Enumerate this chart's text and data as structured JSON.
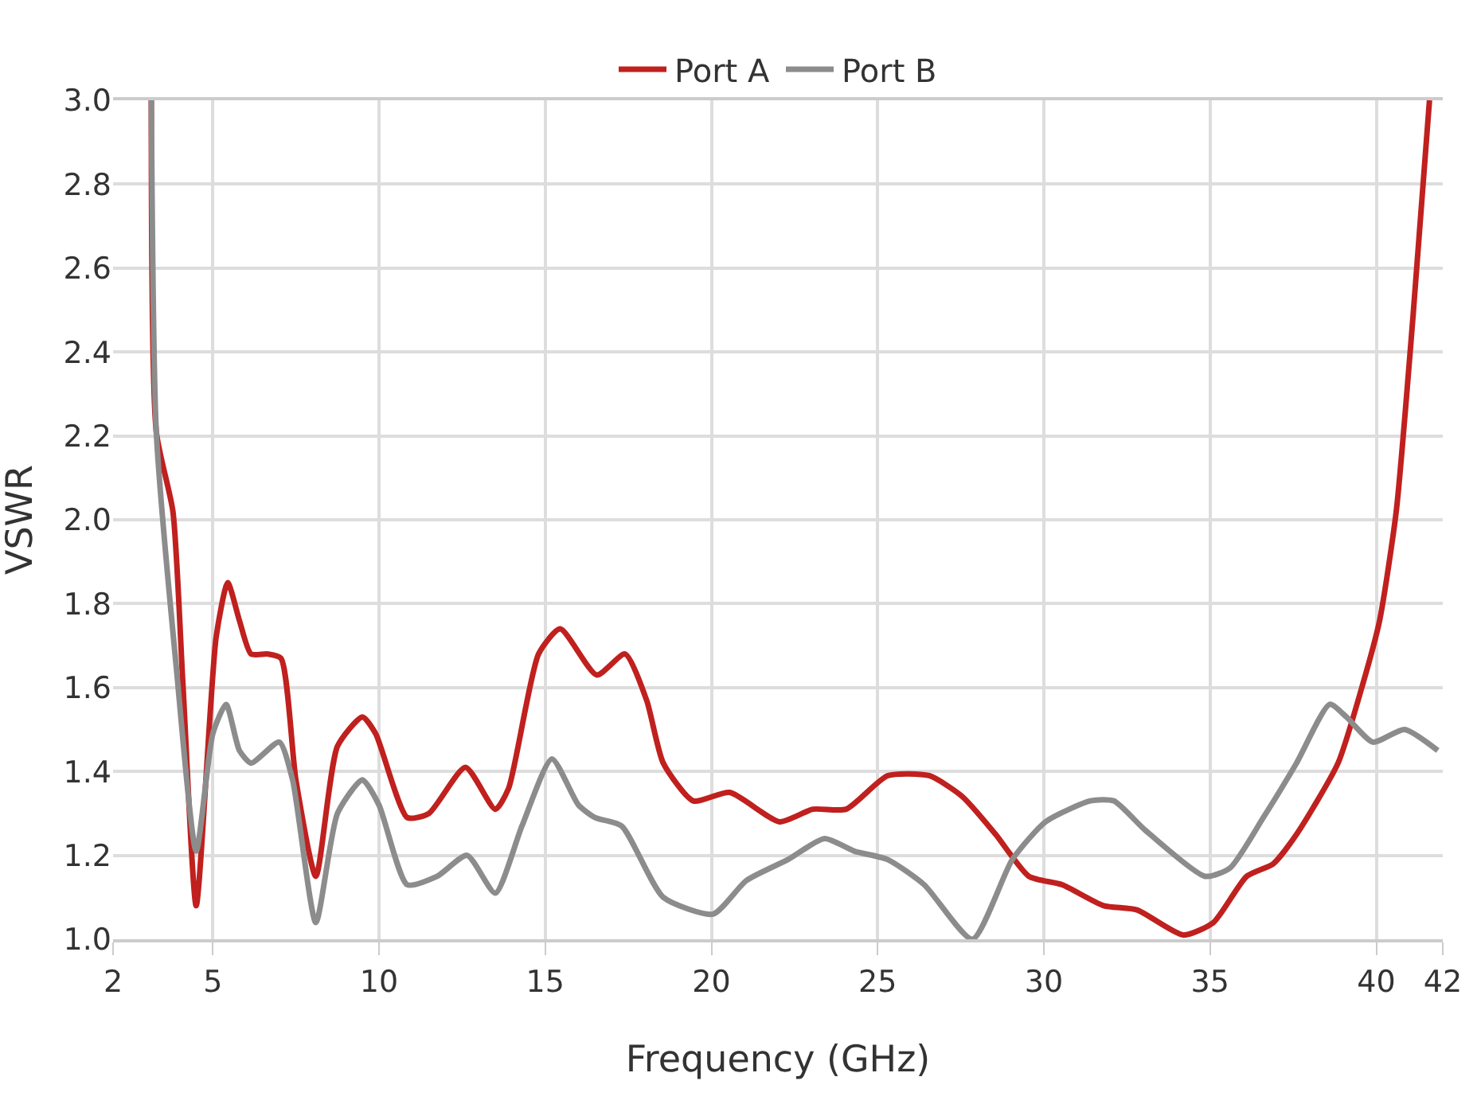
{
  "chart_data": {
    "type": "line",
    "xlabel": "Frequency (GHz)",
    "ylabel": "VSWR",
    "xlim": [
      2,
      42
    ],
    "xticks": [
      2,
      5,
      10,
      15,
      20,
      25,
      30,
      35,
      40,
      42
    ],
    "ylim": [
      1.0,
      3.0
    ],
    "yticks": [
      {
        "value": 1.0,
        "label": "1.0"
      },
      1.2,
      1.4,
      1.6,
      1.8,
      {
        "value": 2.0,
        "label": "2.0"
      },
      2.2,
      2.4,
      2.6,
      2.8,
      {
        "value": 3.0,
        "label": "3.0"
      }
    ],
    "grid": true,
    "legend": "top",
    "marker": "none",
    "line_style": "solid",
    "series": [
      {
        "name": "Port A",
        "color": "#c0201e",
        "x": [
          3.15,
          3.3,
          3.8,
          4.1,
          4.5,
          5.1,
          5.45,
          5.8,
          6.15,
          6.65,
          7.05,
          7.5,
          8.1,
          8.75,
          9.5,
          9.9,
          10.85,
          11.5,
          12.6,
          13.5,
          13.9,
          14.8,
          15.45,
          16.55,
          17.4,
          18.05,
          18.55,
          19.45,
          20.55,
          22.05,
          23.05,
          24.05,
          25.3,
          26.55,
          27.55,
          28.55,
          29.55,
          30.55,
          31.8,
          32.8,
          34.2,
          35.1,
          36.1,
          36.9,
          37.6,
          38.85,
          39.6,
          40.1,
          40.6,
          41.1,
          41.6
        ],
        "values": [
          3.0,
          2.21,
          2.02,
          1.61,
          1.08,
          1.72,
          1.85,
          1.76,
          1.68,
          1.68,
          1.67,
          1.38,
          1.15,
          1.46,
          1.53,
          1.49,
          1.29,
          1.3,
          1.41,
          1.31,
          1.36,
          1.68,
          1.74,
          1.63,
          1.68,
          1.57,
          1.42,
          1.33,
          1.35,
          1.28,
          1.31,
          1.31,
          1.39,
          1.39,
          1.34,
          1.25,
          1.15,
          1.13,
          1.08,
          1.07,
          1.01,
          1.04,
          1.15,
          1.18,
          1.25,
          1.42,
          1.61,
          1.76,
          2.02,
          2.48,
          3.0
        ]
      },
      {
        "name": "Port B",
        "color": "#8c8c8c",
        "x": [
          3.15,
          3.3,
          3.9,
          4.5,
          5.0,
          5.4,
          5.8,
          6.15,
          7.0,
          7.4,
          8.1,
          8.75,
          9.5,
          10.0,
          10.85,
          11.75,
          12.65,
          13.5,
          14.3,
          15.2,
          16.0,
          16.5,
          17.3,
          18.55,
          20.05,
          21.05,
          22.3,
          23.4,
          24.3,
          25.3,
          26.4,
          27.85,
          29.05,
          30.05,
          31.4,
          32.1,
          33.05,
          34.85,
          35.6,
          36.6,
          37.6,
          38.6,
          39.1,
          39.9,
          40.85,
          41.85
        ],
        "values": [
          3.0,
          2.21,
          1.65,
          1.21,
          1.49,
          1.56,
          1.45,
          1.42,
          1.47,
          1.38,
          1.04,
          1.3,
          1.38,
          1.32,
          1.13,
          1.15,
          1.2,
          1.11,
          1.27,
          1.43,
          1.32,
          1.29,
          1.27,
          1.1,
          1.06,
          1.14,
          1.19,
          1.24,
          1.21,
          1.19,
          1.13,
          1.0,
          1.19,
          1.28,
          1.33,
          1.33,
          1.26,
          1.15,
          1.17,
          1.29,
          1.42,
          1.56,
          1.53,
          1.47,
          1.5,
          1.45
        ]
      }
    ]
  }
}
